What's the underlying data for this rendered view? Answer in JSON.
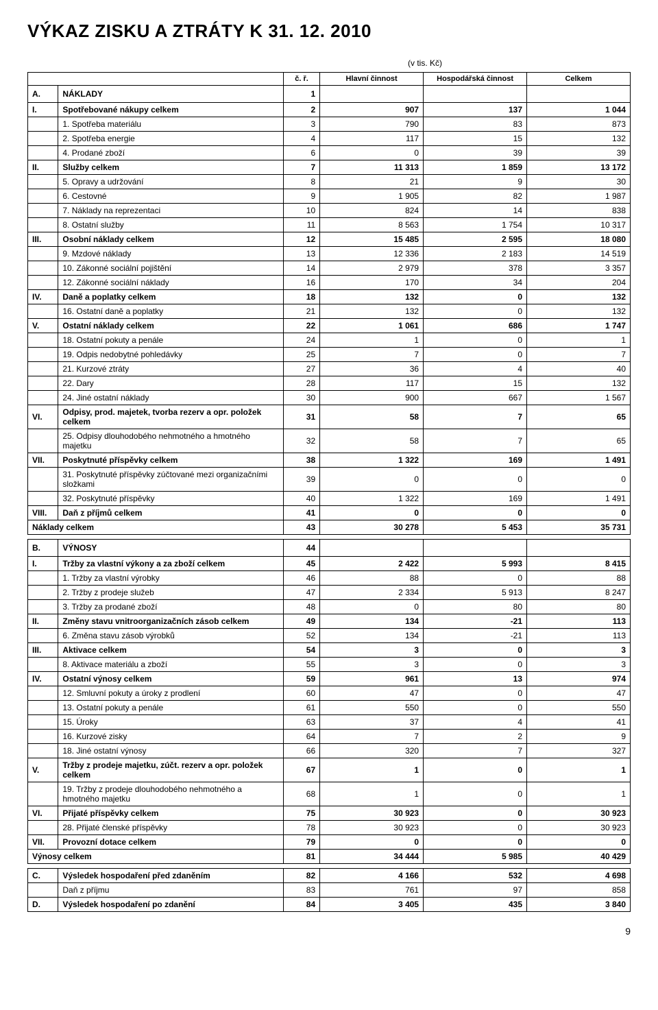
{
  "title": "VÝKAZ ZISKU A ZTRÁTY K 31. 12. 2010",
  "unit": "(v tis. Kč)",
  "columns": {
    "num": "č. ř.",
    "main": "Hlavní činnost",
    "econ": "Hospodářská činnost",
    "total": "Celkem"
  },
  "rows": [
    {
      "code": "A.",
      "label": "NÁKLADY",
      "n": "1",
      "c1": "",
      "c2": "",
      "c3": "",
      "bold": true,
      "section": true
    },
    {
      "code": "I.",
      "label": "Spotřebované nákupy celkem",
      "n": "2",
      "c1": "907",
      "c2": "137",
      "c3": "1 044",
      "bold": true
    },
    {
      "code": "",
      "label": "1. Spotřeba materiálu",
      "n": "3",
      "c1": "790",
      "c2": "83",
      "c3": "873"
    },
    {
      "code": "",
      "label": "2. Spotřeba energie",
      "n": "4",
      "c1": "117",
      "c2": "15",
      "c3": "132"
    },
    {
      "code": "",
      "label": "4. Prodané zboží",
      "n": "6",
      "c1": "0",
      "c2": "39",
      "c3": "39"
    },
    {
      "code": "II.",
      "label": "Služby celkem",
      "n": "7",
      "c1": "11 313",
      "c2": "1 859",
      "c3": "13 172",
      "bold": true
    },
    {
      "code": "",
      "label": "5. Opravy a udržování",
      "n": "8",
      "c1": "21",
      "c2": "9",
      "c3": "30"
    },
    {
      "code": "",
      "label": "6. Cestovné",
      "n": "9",
      "c1": "1 905",
      "c2": "82",
      "c3": "1 987"
    },
    {
      "code": "",
      "label": "7. Náklady na reprezentaci",
      "n": "10",
      "c1": "824",
      "c2": "14",
      "c3": "838"
    },
    {
      "code": "",
      "label": "8. Ostatní služby",
      "n": "11",
      "c1": "8 563",
      "c2": "1 754",
      "c3": "10 317"
    },
    {
      "code": "III.",
      "label": "Osobní náklady celkem",
      "n": "12",
      "c1": "15 485",
      "c2": "2 595",
      "c3": "18 080",
      "bold": true
    },
    {
      "code": "",
      "label": "9. Mzdové náklady",
      "n": "13",
      "c1": "12 336",
      "c2": "2 183",
      "c3": "14 519"
    },
    {
      "code": "",
      "label": "10. Zákonné sociální pojištění",
      "n": "14",
      "c1": "2 979",
      "c2": "378",
      "c3": "3 357"
    },
    {
      "code": "",
      "label": "12. Zákonné sociální náklady",
      "n": "16",
      "c1": "170",
      "c2": "34",
      "c3": "204"
    },
    {
      "code": "IV.",
      "label": "Daně a poplatky celkem",
      "n": "18",
      "c1": "132",
      "c2": "0",
      "c3": "132",
      "bold": true
    },
    {
      "code": "",
      "label": "16. Ostatní daně a poplatky",
      "n": "21",
      "c1": "132",
      "c2": "0",
      "c3": "132"
    },
    {
      "code": "V.",
      "label": "Ostatní náklady celkem",
      "n": "22",
      "c1": "1 061",
      "c2": "686",
      "c3": "1 747",
      "bold": true
    },
    {
      "code": "",
      "label": "18. Ostatní pokuty a penále",
      "n": "24",
      "c1": "1",
      "c2": "0",
      "c3": "1"
    },
    {
      "code": "",
      "label": "19. Odpis nedobytné pohledávky",
      "n": "25",
      "c1": "7",
      "c2": "0",
      "c3": "7"
    },
    {
      "code": "",
      "label": "21. Kurzové ztráty",
      "n": "27",
      "c1": "36",
      "c2": "4",
      "c3": "40"
    },
    {
      "code": "",
      "label": "22. Dary",
      "n": "28",
      "c1": "117",
      "c2": "15",
      "c3": "132"
    },
    {
      "code": "",
      "label": "24. Jiné ostatní náklady",
      "n": "30",
      "c1": "900",
      "c2": "667",
      "c3": "1 567"
    },
    {
      "code": "VI.",
      "label": "Odpisy, prod. majetek, tvorba rezerv a opr. položek celkem",
      "n": "31",
      "c1": "58",
      "c2": "7",
      "c3": "65",
      "bold": true
    },
    {
      "code": "",
      "label": "25. Odpisy dlouhodobého nehmotného a hmotného majetku",
      "n": "32",
      "c1": "58",
      "c2": "7",
      "c3": "65"
    },
    {
      "code": "VII.",
      "label": "Poskytnuté příspěvky celkem",
      "n": "38",
      "c1": "1 322",
      "c2": "169",
      "c3": "1 491",
      "bold": true
    },
    {
      "code": "",
      "label": "31. Poskytnuté příspěvky zúčtované mezi organizačními složkami",
      "n": "39",
      "c1": "0",
      "c2": "0",
      "c3": "0"
    },
    {
      "code": "",
      "label": "32. Poskytnuté příspěvky",
      "n": "40",
      "c1": "1 322",
      "c2": "169",
      "c3": "1 491"
    },
    {
      "code": "VIII.",
      "label": "Daň z příjmů celkem",
      "n": "41",
      "c1": "0",
      "c2": "0",
      "c3": "0",
      "bold": true
    },
    {
      "code": "",
      "label": "Náklady celkem",
      "n": "43",
      "c1": "30 278",
      "c2": "5 453",
      "c3": "35 731",
      "bold": true,
      "merge": true
    },
    {
      "spacer": true
    },
    {
      "code": "B.",
      "label": "VÝNOSY",
      "n": "44",
      "c1": "",
      "c2": "",
      "c3": "",
      "bold": true,
      "section": true
    },
    {
      "code": "I.",
      "label": "Tržby za vlastní výkony a za zboží celkem",
      "n": "45",
      "c1": "2 422",
      "c2": "5 993",
      "c3": "8 415",
      "bold": true
    },
    {
      "code": "",
      "label": "1. Tržby za vlastní výrobky",
      "n": "46",
      "c1": "88",
      "c2": "0",
      "c3": "88"
    },
    {
      "code": "",
      "label": "2. Tržby z prodeje služeb",
      "n": "47",
      "c1": "2 334",
      "c2": "5 913",
      "c3": "8 247"
    },
    {
      "code": "",
      "label": "3. Tržby za prodané zboží",
      "n": "48",
      "c1": "0",
      "c2": "80",
      "c3": "80"
    },
    {
      "code": "II.",
      "label": "Změny stavu vnitroorganizačních zásob celkem",
      "n": "49",
      "c1": "134",
      "c2": "-21",
      "c3": "113",
      "bold": true
    },
    {
      "code": "",
      "label": "6. Změna stavu zásob výrobků",
      "n": "52",
      "c1": "134",
      "c2": "-21",
      "c3": "113"
    },
    {
      "code": "III.",
      "label": "Aktivace celkem",
      "n": "54",
      "c1": "3",
      "c2": "0",
      "c3": "3",
      "bold": true
    },
    {
      "code": "",
      "label": "8. Aktivace materiálu a zboží",
      "n": "55",
      "c1": "3",
      "c2": "0",
      "c3": "3"
    },
    {
      "code": "IV.",
      "label": "Ostatní výnosy celkem",
      "n": "59",
      "c1": "961",
      "c2": "13",
      "c3": "974",
      "bold": true
    },
    {
      "code": "",
      "label": "12. Smluvní pokuty a úroky z prodlení",
      "n": "60",
      "c1": "47",
      "c2": "0",
      "c3": "47"
    },
    {
      "code": "",
      "label": "13. Ostatní pokuty a penále",
      "n": "61",
      "c1": "550",
      "c2": "0",
      "c3": "550"
    },
    {
      "code": "",
      "label": "15. Úroky",
      "n": "63",
      "c1": "37",
      "c2": "4",
      "c3": "41"
    },
    {
      "code": "",
      "label": "16. Kurzové zisky",
      "n": "64",
      "c1": "7",
      "c2": "2",
      "c3": "9"
    },
    {
      "code": "",
      "label": "18. Jiné ostatní výnosy",
      "n": "66",
      "c1": "320",
      "c2": "7",
      "c3": "327"
    },
    {
      "code": "V.",
      "label": "Tržby z prodeje majetku, zúčt. rezerv a opr. položek celkem",
      "n": "67",
      "c1": "1",
      "c2": "0",
      "c3": "1",
      "bold": true
    },
    {
      "code": "",
      "label": "19. Tržby z prodeje dlouhodobého nehmotného a hmotného majetku",
      "n": "68",
      "c1": "1",
      "c2": "0",
      "c3": "1"
    },
    {
      "code": "VI.",
      "label": "Přijaté příspěvky celkem",
      "n": "75",
      "c1": "30 923",
      "c2": "0",
      "c3": "30 923",
      "bold": true
    },
    {
      "code": "",
      "label": "28. Přijaté členské příspěvky",
      "n": "78",
      "c1": "30 923",
      "c2": "0",
      "c3": "30 923"
    },
    {
      "code": "VII.",
      "label": "Provozní dotace celkem",
      "n": "79",
      "c1": "0",
      "c2": "0",
      "c3": "0",
      "bold": true
    },
    {
      "code": "",
      "label": "Výnosy celkem",
      "n": "81",
      "c1": "34 444",
      "c2": "5 985",
      "c3": "40 429",
      "bold": true,
      "merge": true
    },
    {
      "spacer": true
    },
    {
      "code": "C.",
      "label": "Výsledek hospodaření před zdaněním",
      "n": "82",
      "c1": "4 166",
      "c2": "532",
      "c3": "4 698",
      "bold": true
    },
    {
      "code": "",
      "label": "Daň z příjmu",
      "n": "83",
      "c1": "761",
      "c2": "97",
      "c3": "858"
    },
    {
      "code": "D.",
      "label": "Výsledek hospodaření po zdanění",
      "n": "84",
      "c1": "3 405",
      "c2": "435",
      "c3": "3 840",
      "bold": true
    }
  ],
  "pageNumber": "9"
}
